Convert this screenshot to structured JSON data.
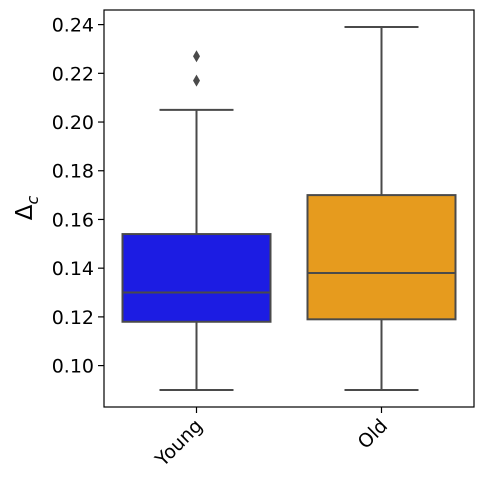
{
  "chart_data": {
    "type": "box",
    "title": "",
    "xlabel": "",
    "ylabel": "Δ",
    "ylabel_subscript": "c",
    "ylim": [
      0.083,
      0.246
    ],
    "yticks": [
      "0.10",
      "0.12",
      "0.14",
      "0.16",
      "0.18",
      "0.20",
      "0.22",
      "0.24"
    ],
    "ytick_values": [
      0.1,
      0.12,
      0.14,
      0.16,
      0.18,
      0.2,
      0.22,
      0.24
    ],
    "categories": [
      "Young",
      "Old"
    ],
    "boxes": [
      {
        "category": "Young",
        "color": "#1c1ce3",
        "whisker_low": 0.09,
        "q1": 0.118,
        "median": 0.13,
        "q3": 0.154,
        "whisker_high": 0.205,
        "outliers": [
          0.217,
          0.227
        ]
      },
      {
        "category": "Old",
        "color": "#e69b1e",
        "whisker_low": 0.09,
        "q1": 0.119,
        "median": 0.138,
        "q3": 0.17,
        "whisker_high": 0.239,
        "outliers": []
      }
    ],
    "line_color": "#4a4a4a",
    "grid": false,
    "legend": "none"
  }
}
